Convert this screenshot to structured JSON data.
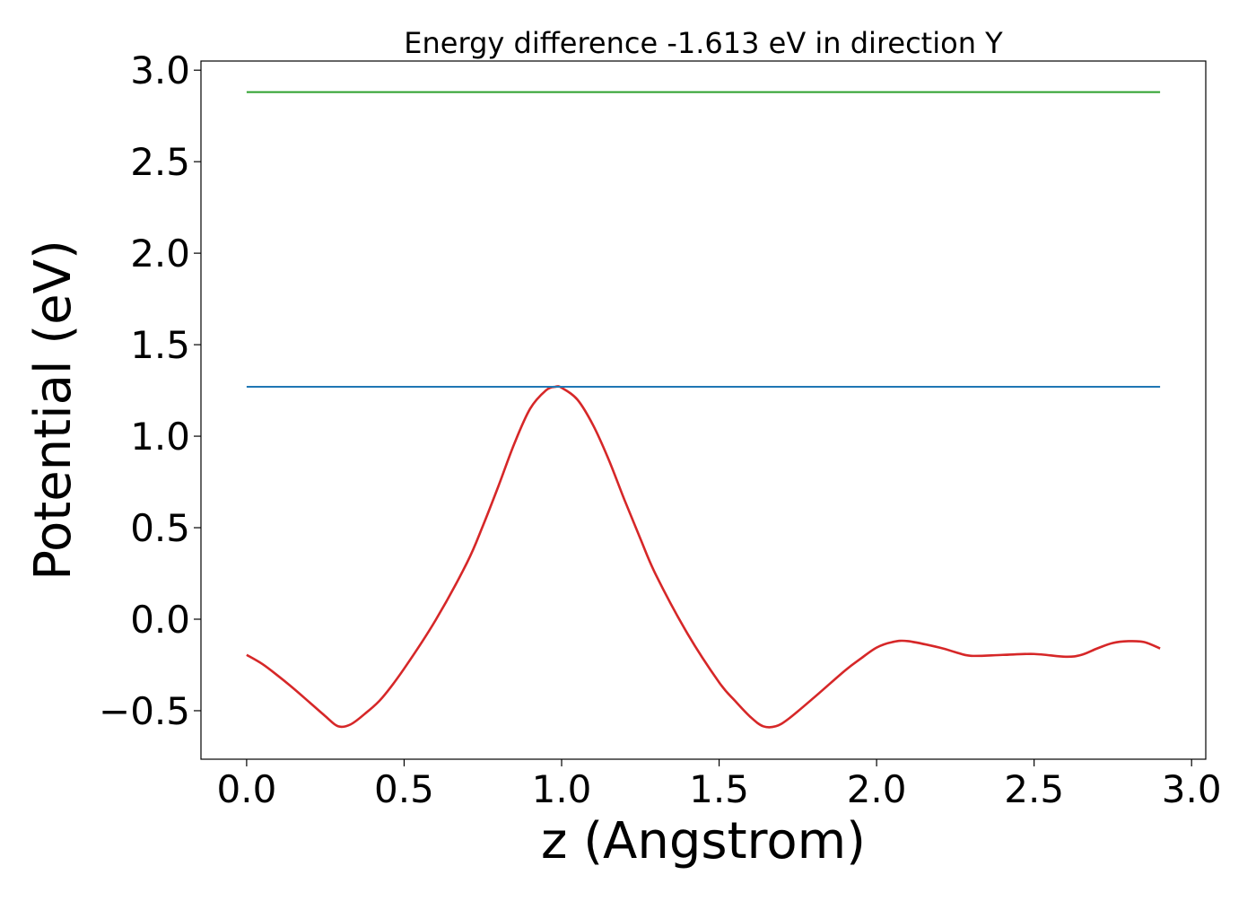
{
  "chart_data": {
    "type": "line",
    "title": "Energy difference -1.613 eV in direction Y",
    "xlabel": "z (Angstrom)",
    "ylabel": "Potential (eV)",
    "xlim": [
      -0.145,
      3.045
    ],
    "ylim": [
      -0.765,
      3.05
    ],
    "xticks": [
      0.0,
      0.5,
      1.0,
      1.5,
      2.0,
      2.5,
      3.0
    ],
    "xtick_labels": [
      "0.0",
      "0.5",
      "1.0",
      "1.5",
      "2.0",
      "2.5",
      "3.0"
    ],
    "yticks": [
      -0.5,
      0.0,
      0.5,
      1.0,
      1.5,
      2.0,
      2.5,
      3.0
    ],
    "ytick_labels": [
      "−0.5",
      "0.0",
      "0.5",
      "1.0",
      "1.5",
      "2.0",
      "2.5",
      "3.0"
    ],
    "grid": false,
    "legend": "none",
    "series": [
      {
        "color": "#d62728",
        "style": "curve",
        "x": [
          0.0,
          0.05,
          0.1,
          0.15,
          0.2,
          0.25,
          0.29,
          0.33,
          0.38,
          0.43,
          0.5,
          0.6,
          0.7,
          0.75,
          0.8,
          0.85,
          0.9,
          0.95,
          0.98,
          1.0,
          1.05,
          1.1,
          1.15,
          1.2,
          1.25,
          1.3,
          1.4,
          1.5,
          1.55,
          1.6,
          1.64,
          1.68,
          1.72,
          1.8,
          1.9,
          1.95,
          2.0,
          2.05,
          2.1,
          2.2,
          2.25,
          2.3,
          2.4,
          2.5,
          2.6,
          2.65,
          2.7,
          2.75,
          2.8,
          2.85,
          2.9
        ],
        "y": [
          -0.195,
          -0.245,
          -0.31,
          -0.38,
          -0.455,
          -0.53,
          -0.585,
          -0.575,
          -0.51,
          -0.43,
          -0.27,
          -0.005,
          0.31,
          0.51,
          0.73,
          0.96,
          1.15,
          1.25,
          1.27,
          1.265,
          1.2,
          1.06,
          0.87,
          0.65,
          0.44,
          0.24,
          -0.08,
          -0.345,
          -0.445,
          -0.535,
          -0.585,
          -0.585,
          -0.545,
          -0.43,
          -0.28,
          -0.215,
          -0.155,
          -0.125,
          -0.12,
          -0.155,
          -0.18,
          -0.2,
          -0.195,
          -0.19,
          -0.205,
          -0.195,
          -0.16,
          -0.13,
          -0.12,
          -0.125,
          -0.16
        ]
      },
      {
        "color": "#1f77b4",
        "style": "flat",
        "x": [
          0.0,
          2.9
        ],
        "y": [
          1.27,
          1.27
        ]
      },
      {
        "color": "#2ca02c",
        "style": "flat",
        "x": [
          0.0,
          2.9
        ],
        "y": [
          2.88,
          2.88
        ]
      }
    ]
  }
}
